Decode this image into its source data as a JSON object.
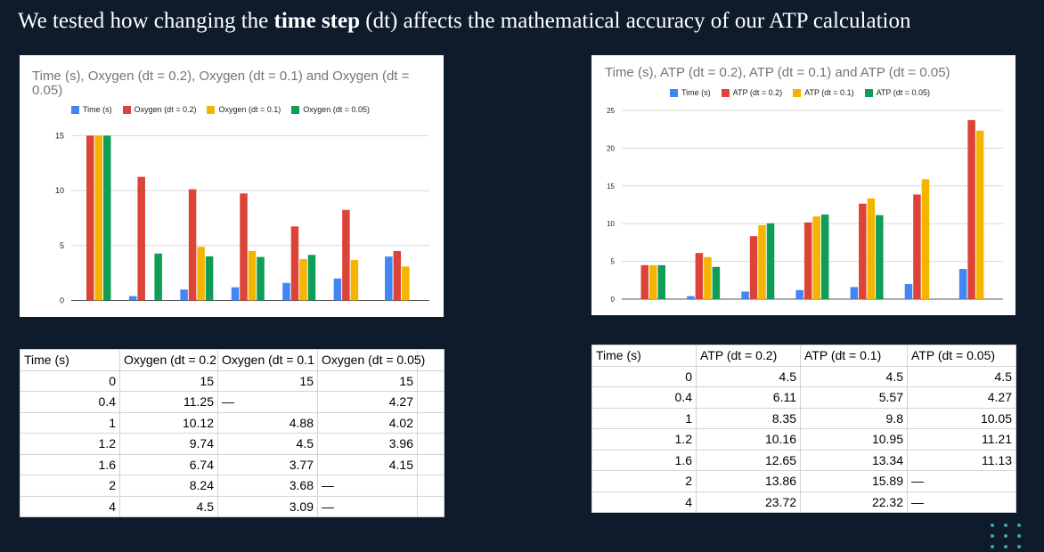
{
  "headline": {
    "part1": "We tested how changing the ",
    "bold": "time step",
    "part2": " (dt) affects the mathematical accuracy of our ATP calculation"
  },
  "colors": {
    "time": "#4285f4",
    "dt02": "#db4437",
    "dt01": "#f4b400",
    "dt005": "#0f9d58"
  },
  "chart_data": [
    {
      "type": "bar",
      "title": "Time (s), Oxygen (dt = 0.2), Oxygen (dt = 0.1) and Oxygen (dt = 0.05)",
      "categories": [
        "",
        "",
        "",
        "",
        "",
        "",
        ""
      ],
      "series": [
        {
          "name": "Time (s)",
          "values": [
            0,
            0.4,
            1,
            1.2,
            1.6,
            2,
            4
          ]
        },
        {
          "name": "Oxygen (dt = 0.2)",
          "values": [
            15,
            11.25,
            10.12,
            9.74,
            6.74,
            8.24,
            4.5
          ]
        },
        {
          "name": "Oxygen (dt = 0.1)",
          "values": [
            15,
            null,
            4.88,
            4.5,
            3.77,
            3.68,
            3.09
          ]
        },
        {
          "name": "Oxygen (dt = 0.05)",
          "values": [
            15,
            4.27,
            4.02,
            3.96,
            4.15,
            null,
            null
          ]
        }
      ],
      "yticks": [
        0,
        5,
        10,
        15
      ],
      "ylim": [
        0,
        15.8
      ],
      "grid": true,
      "legend": "top"
    },
    {
      "type": "bar",
      "title": "Time (s), ATP (dt = 0.2), ATP (dt = 0.1) and ATP (dt = 0.05)",
      "categories": [
        "",
        "",
        "",
        "",
        "",
        "",
        ""
      ],
      "series": [
        {
          "name": "Time (s)",
          "values": [
            0,
            0.4,
            1,
            1.2,
            1.6,
            2,
            4
          ]
        },
        {
          "name": "ATP (dt = 0.2)",
          "values": [
            4.5,
            6.11,
            8.35,
            10.16,
            12.65,
            13.86,
            23.72
          ]
        },
        {
          "name": "ATP (dt = 0.1)",
          "values": [
            4.5,
            5.57,
            9.8,
            10.95,
            13.34,
            15.89,
            22.32
          ]
        },
        {
          "name": "ATP (dt = 0.05)",
          "values": [
            4.5,
            4.27,
            10.05,
            11.21,
            11.13,
            null,
            null
          ]
        }
      ],
      "yticks": [
        0,
        5,
        10,
        15,
        20,
        25
      ],
      "ylim": [
        0,
        25
      ],
      "grid": true,
      "legend": "top"
    }
  ],
  "tables": {
    "oxygen": {
      "headers": [
        "Time (s)",
        "Oxygen (dt = 0.2",
        "Oxygen (dt = 0.1",
        "Oxygen (dt = 0.05)"
      ],
      "rows": [
        [
          "0",
          "15",
          "15",
          "15"
        ],
        [
          "0.4",
          "11.25",
          "—",
          "4.27"
        ],
        [
          "1",
          "10.12",
          "4.88",
          "4.02"
        ],
        [
          "1.2",
          "9.74",
          "4.5",
          "3.96"
        ],
        [
          "1.6",
          "6.74",
          "3.77",
          "4.15"
        ],
        [
          "2",
          "8.24",
          "3.68",
          "—"
        ],
        [
          "4",
          "4.5",
          "3.09",
          "—"
        ]
      ]
    },
    "atp": {
      "headers": [
        "Time (s)",
        "ATP (dt = 0.2)",
        "ATP (dt = 0.1)",
        "ATP (dt = 0.05)"
      ],
      "rows": [
        [
          "0",
          "4.5",
          "4.5",
          "4.5"
        ],
        [
          "0.4",
          "6.11",
          "5.57",
          "4.27"
        ],
        [
          "1",
          "8.35",
          "9.8",
          "10.05"
        ],
        [
          "1.2",
          "10.16",
          "10.95",
          "11.21"
        ],
        [
          "1.6",
          "12.65",
          "13.34",
          "11.13"
        ],
        [
          "2",
          "13.86",
          "15.89",
          "—"
        ],
        [
          "4",
          "23.72",
          "22.32",
          "—"
        ]
      ]
    }
  }
}
